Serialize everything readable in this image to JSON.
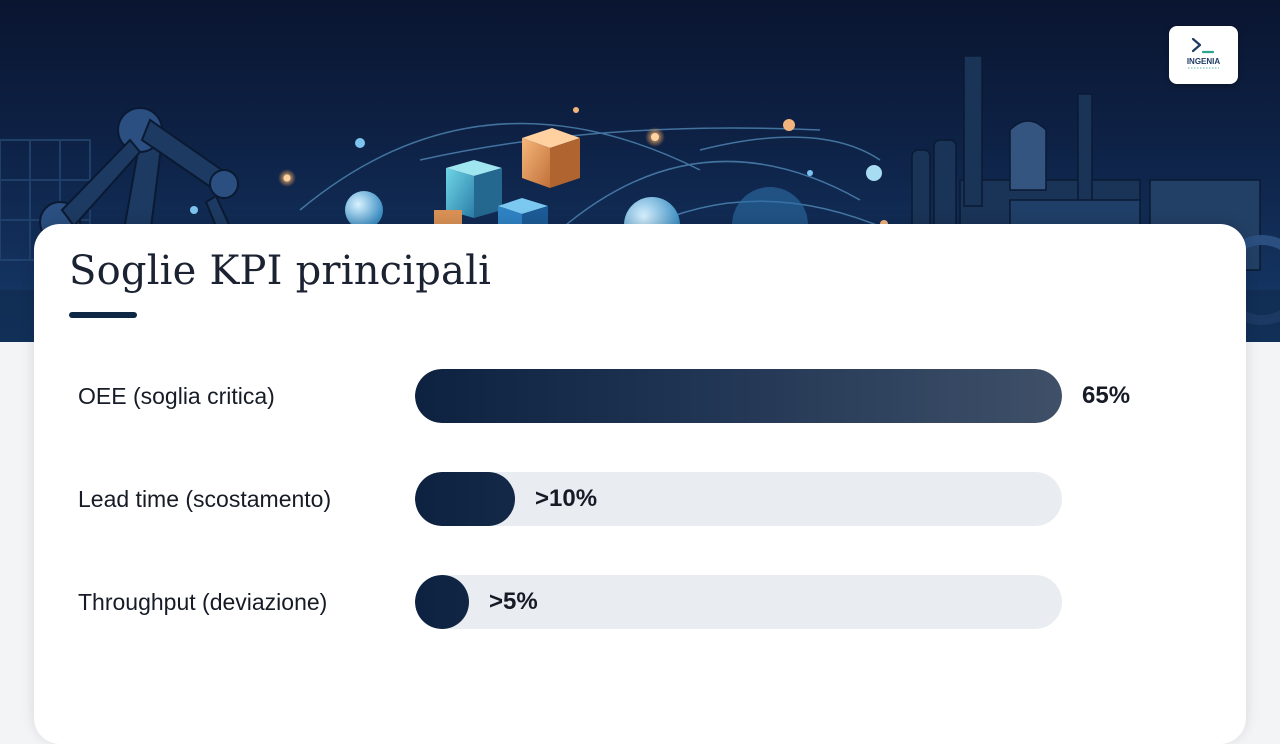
{
  "slide": {
    "title": "Soglie KPI principali",
    "logo_text": "INGENIA",
    "logo_glyph": ">_",
    "accent_color": "#0d2745"
  },
  "chart_data": {
    "type": "bar",
    "orientation": "horizontal",
    "categories": [
      "OEE (soglia critica)",
      "Lead time (scostamento)",
      "Throughput (deviazione)"
    ],
    "values": [
      65,
      10,
      5
    ],
    "value_labels": [
      "65%",
      ">10%",
      ">5%"
    ],
    "xlim": [
      0,
      65
    ],
    "grid": false,
    "legend": "none",
    "bar_color": "#0c2240",
    "track_color": "#e9ecf0"
  }
}
